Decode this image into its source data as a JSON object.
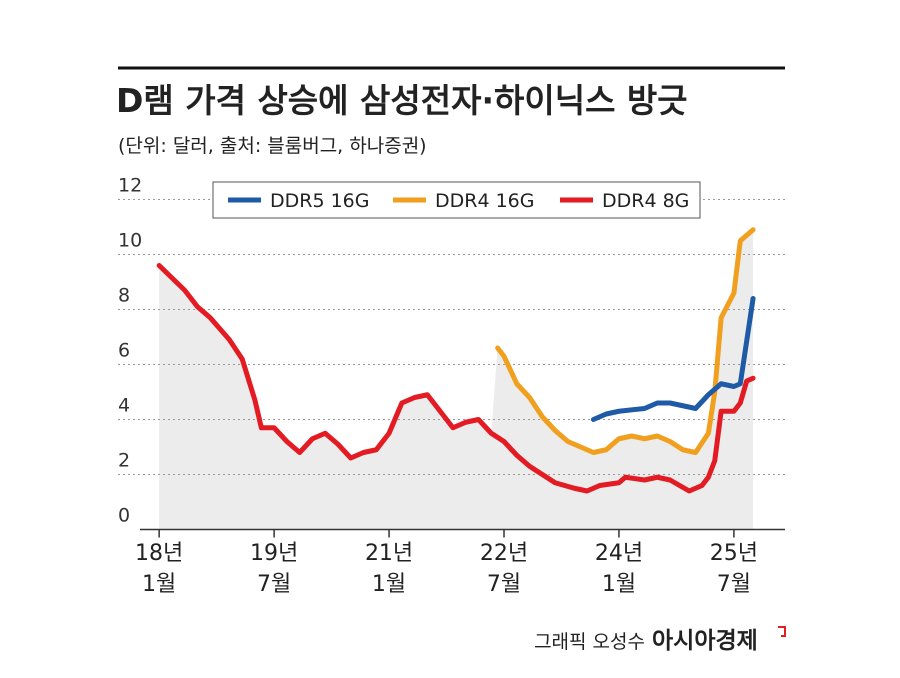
{
  "chart_data": {
    "type": "line",
    "title": "D램 가격 상승에 삼성전자·하이닉스 방긋",
    "subtitle": "(단위: 달러, 출처: 블룸버그, 하나증권)",
    "credit": "그래픽 오성수",
    "source_logo": "아시아경제",
    "ylim": [
      0,
      12
    ],
    "yticks": [
      0,
      2,
      4,
      6,
      8,
      10,
      12
    ],
    "grid": true,
    "xlim": [
      "2017-10",
      "2026-03"
    ],
    "xticks": [
      {
        "value": "2018-01",
        "label": [
          "18년",
          "1월"
        ]
      },
      {
        "value": "2019-07",
        "label": [
          "19년",
          "7월"
        ]
      },
      {
        "value": "2021-01",
        "label": [
          "21년",
          "1월"
        ]
      },
      {
        "value": "2022-07",
        "label": [
          "22년",
          "7월"
        ]
      },
      {
        "value": "2024-01",
        "label": [
          "24년",
          "1월"
        ]
      },
      {
        "value": "2025-07",
        "label": [
          "25년",
          "7월"
        ]
      }
    ],
    "series": [
      {
        "name": "DDR5 16G",
        "color": "#1f5aa6",
        "x": [
          "2023-09",
          "2023-11",
          "2024-01",
          "2024-05",
          "2024-07",
          "2024-09",
          "2024-11",
          "2025-01",
          "2025-03",
          "2025-05",
          "2025-07",
          "2025-08",
          "2025-10"
        ],
        "values": [
          4.0,
          4.2,
          4.3,
          4.4,
          4.6,
          4.6,
          4.5,
          4.4,
          4.9,
          5.3,
          5.2,
          5.3,
          8.4
        ]
      },
      {
        "name": "DDR4 16G",
        "color": "#f0a01e",
        "x": [
          "2022-06",
          "2022-07",
          "2022-09",
          "2022-11",
          "2023-01",
          "2023-03",
          "2023-05",
          "2023-07",
          "2023-09",
          "2023-11",
          "2024-01",
          "2024-03",
          "2024-05",
          "2024-07",
          "2024-09",
          "2024-11",
          "2025-01",
          "2025-03",
          "2025-04",
          "2025-05",
          "2025-07",
          "2025-08",
          "2025-10"
        ],
        "values": [
          6.6,
          6.3,
          5.3,
          4.8,
          4.1,
          3.6,
          3.2,
          3.0,
          2.8,
          2.9,
          3.3,
          3.4,
          3.3,
          3.4,
          3.2,
          2.9,
          2.8,
          3.5,
          5.0,
          7.7,
          8.6,
          10.5,
          10.9
        ]
      },
      {
        "name": "DDR4 8G",
        "color": "#e31b23",
        "x": [
          "2018-01",
          "2018-05",
          "2018-07",
          "2018-09",
          "2018-12",
          "2019-02",
          "2019-04",
          "2019-05",
          "2019-07",
          "2019-09",
          "2019-11",
          "2020-01",
          "2020-03",
          "2020-05",
          "2020-07",
          "2020-09",
          "2020-11",
          "2021-01",
          "2021-03",
          "2021-05",
          "2021-07",
          "2021-09",
          "2021-11",
          "2022-01",
          "2022-03",
          "2022-05",
          "2022-07",
          "2022-09",
          "2022-11",
          "2023-01",
          "2023-03",
          "2023-06",
          "2023-08",
          "2023-10",
          "2024-01",
          "2024-02",
          "2024-05",
          "2024-07",
          "2024-09",
          "2024-12",
          "2025-02",
          "2025-03",
          "2025-04",
          "2025-05",
          "2025-07",
          "2025-08",
          "2025-09",
          "2025-10"
        ],
        "values": [
          9.6,
          8.7,
          8.1,
          7.7,
          6.9,
          6.2,
          4.7,
          3.7,
          3.7,
          3.2,
          2.8,
          3.3,
          3.5,
          3.1,
          2.6,
          2.8,
          2.9,
          3.5,
          4.6,
          4.8,
          4.9,
          4.3,
          3.7,
          3.9,
          4.0,
          3.5,
          3.2,
          2.7,
          2.3,
          2.0,
          1.7,
          1.5,
          1.4,
          1.6,
          1.7,
          1.9,
          1.8,
          1.9,
          1.8,
          1.4,
          1.6,
          1.9,
          2.5,
          4.3,
          4.3,
          4.6,
          5.4,
          5.5
        ]
      }
    ]
  }
}
